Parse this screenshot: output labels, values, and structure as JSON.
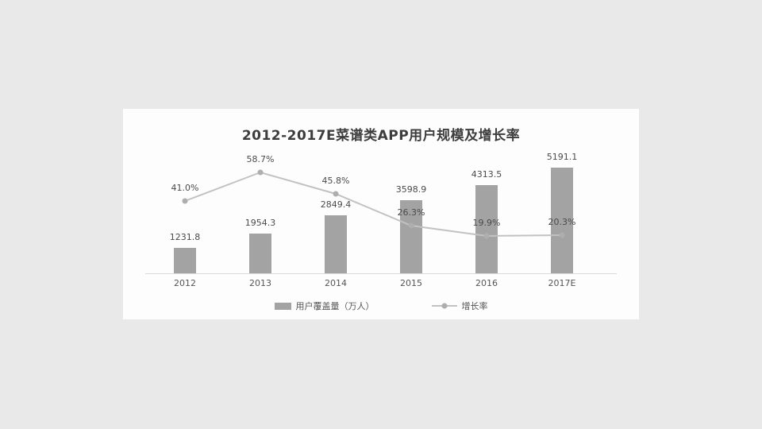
{
  "page": {
    "background_color": "#e9e9e9",
    "panel_color": "#fdfdfd"
  },
  "chart_data": {
    "type": "bar",
    "subtype": "bar+line-combo",
    "title": "2012-2017E菜谱类APP用户规模及增长率",
    "categories": [
      "2012",
      "2013",
      "2014",
      "2015",
      "2016",
      "2017E"
    ],
    "series": [
      {
        "name": "用户覆盖量（万人）",
        "type": "bar",
        "values": [
          1231.8,
          1954.3,
          2849.4,
          3598.9,
          4313.5,
          5191.1
        ],
        "labels": [
          "1231.8",
          "1954.3",
          "2849.4",
          "3598.9",
          "4313.5",
          "5191.1"
        ],
        "color": "#a3a3a3",
        "ylim": [
          0,
          5700
        ]
      },
      {
        "name": "增长率",
        "type": "line",
        "values": [
          41.0,
          58.7,
          45.8,
          26.3,
          19.9,
          20.3
        ],
        "labels": [
          "41.0%",
          "58.7%",
          "45.8%",
          "26.3%",
          "19.9%",
          "20.3%"
        ],
        "color": "#c2c2c2",
        "marker_color": "#aeaeae",
        "ylim": [
          0,
          70
        ]
      }
    ],
    "xlabel": "",
    "ylabel": "",
    "grid": false,
    "legend_position": "bottom",
    "axis_line_color": "#d9d9d9"
  }
}
